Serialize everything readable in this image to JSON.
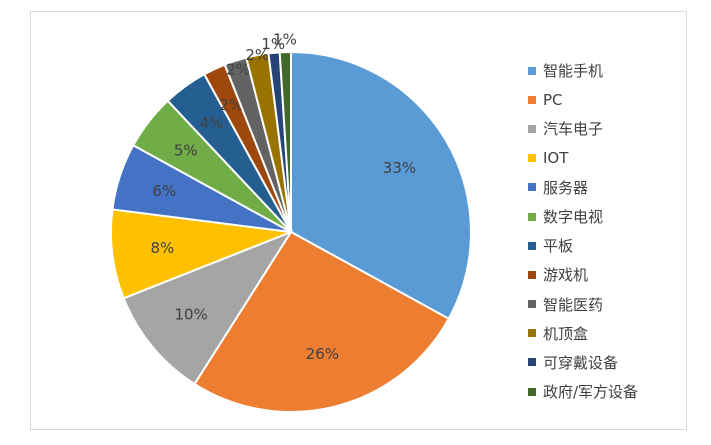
{
  "chart_data": {
    "type": "pie",
    "title": "",
    "legend_position": "right",
    "categories": [
      "智能手机",
      "PC",
      "汽车电子",
      "IOT",
      "服务器",
      "数字电视",
      "平板",
      "游戏机",
      "智能医药",
      "机顶盒",
      "可穿戴设备",
      "政府/军方设备"
    ],
    "values": [
      33,
      26,
      10,
      8,
      6,
      5,
      4,
      2,
      2,
      2,
      1,
      1
    ],
    "labels": [
      "33%",
      "26%",
      "10%",
      "8%",
      "6%",
      "5%",
      "4%",
      "2%",
      "2%",
      "2%",
      "1%",
      "1%"
    ],
    "colors": [
      "#5b9bd5",
      "#ed7d31",
      "#a5a5a5",
      "#ffc000",
      "#4472c4",
      "#70ad47",
      "#255e91",
      "#9e480e",
      "#636363",
      "#997300",
      "#264478",
      "#43682b"
    ]
  }
}
